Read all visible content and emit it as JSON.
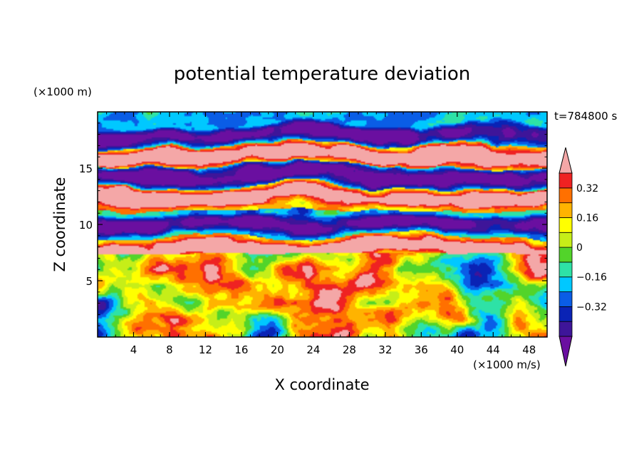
{
  "chart_data": {
    "type": "heatmap",
    "title": "potential temperature deviation",
    "xlabel": "X coordinate",
    "ylabel": "Z coordinate",
    "x_unit": "(×1000 m/s)",
    "y_unit": "(×1000 m)",
    "time_label": "t=784800 s",
    "xlim": [
      0,
      50
    ],
    "ylim": [
      0,
      20
    ],
    "x_ticks": [
      4,
      8,
      12,
      16,
      20,
      24,
      28,
      32,
      36,
      40,
      44,
      48
    ],
    "y_ticks": [
      5,
      10,
      15
    ],
    "colorbar": {
      "levels": [
        -0.48,
        -0.4,
        -0.32,
        -0.24,
        -0.16,
        -0.08,
        0,
        0.08,
        0.16,
        0.24,
        0.32,
        0.4
      ],
      "tick_labels": [
        "-0.32",
        "-0.16",
        "0",
        "0.16",
        "0.32"
      ],
      "tick_values": [
        -0.32,
        -0.16,
        0,
        0.16,
        0.32
      ],
      "colors": [
        "#6a0fa0",
        "#3e1599",
        "#0a23b5",
        "#0a5de6",
        "#00c8ff",
        "#2ee2a6",
        "#52d42a",
        "#c6ee18",
        "#ffff00",
        "#ffb300",
        "#ff7000",
        "#ef2222",
        "#f4a7a7"
      ],
      "extend": "both"
    },
    "field": {
      "description_grid_cols": 50,
      "description_grid_rows": 20,
      "lower_layer_top_z": 7.4,
      "band_centers_z": [
        8.0,
        10.2,
        12.6,
        14.5,
        16.3,
        18.2
      ],
      "band_signs": [
        1,
        -1,
        1,
        -1,
        1,
        -1
      ]
    }
  }
}
